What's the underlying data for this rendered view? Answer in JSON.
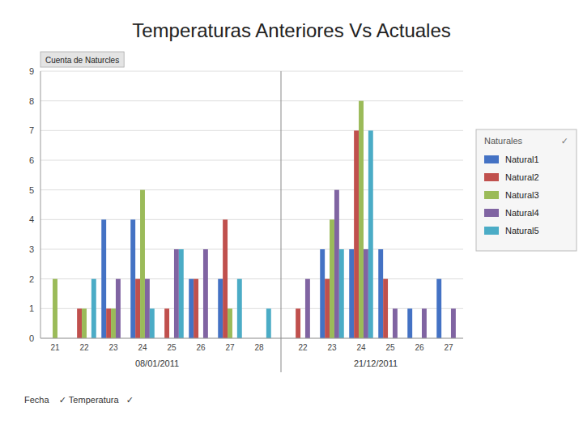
{
  "chart_data": {
    "type": "bar",
    "title": "Temperaturas Anteriores Vs Actuales",
    "y_label": "Cuenta de Naturcles",
    "x_label": "Fecha    ✓ Temperatura   ✓",
    "legend_title": "Naturales",
    "annotations": [
      "✓"
    ],
    "categories": [
      "21",
      "22",
      "23",
      "24",
      "25",
      "26",
      "27",
      "28",
      "22",
      "23",
      "24",
      "25",
      "26",
      "27"
    ],
    "category_groups": [
      "08/01/2011",
      "08/01/2011",
      "08/01/2011",
      "08/01/2011",
      "08/01/2011",
      "08/01/2011",
      "08/01/2011",
      "08/01/2011",
      "21/12/2011",
      "21/12/2011",
      "21/12/2011",
      "21/12/2011",
      "21/12/2011",
      "21/12/2011"
    ],
    "series": [
      {
        "name": "Natural1",
        "color": "#4472c4",
        "values": [
          0,
          0,
          4,
          4,
          0,
          2,
          2,
          0,
          0,
          3,
          3,
          3,
          1,
          2
        ]
      },
      {
        "name": "Natural2",
        "color": "#c0504d",
        "values": [
          0,
          1,
          1,
          2,
          1,
          2,
          4,
          0,
          1,
          2,
          7,
          2,
          0,
          0
        ]
      },
      {
        "name": "Natural3",
        "color": "#9bbb59",
        "values": [
          2,
          1,
          1,
          5,
          0,
          0,
          1,
          0,
          0,
          4,
          8,
          0,
          0,
          0
        ]
      },
      {
        "name": "Natural4",
        "color": "#8064a2",
        "values": [
          0,
          0,
          2,
          2,
          3,
          3,
          0,
          0,
          2,
          5,
          3,
          1,
          1,
          1
        ]
      },
      {
        "name": "Natural5",
        "color": "#4bacc6",
        "values": [
          0,
          2,
          0,
          1,
          3,
          0,
          2,
          1,
          0,
          3,
          7,
          0,
          0,
          0
        ]
      }
    ],
    "ylim": [
      0,
      9
    ],
    "yticks": [
      0,
      1,
      2,
      3,
      4,
      5,
      6,
      7,
      8,
      9
    ],
    "grid": true,
    "legend": "right"
  }
}
